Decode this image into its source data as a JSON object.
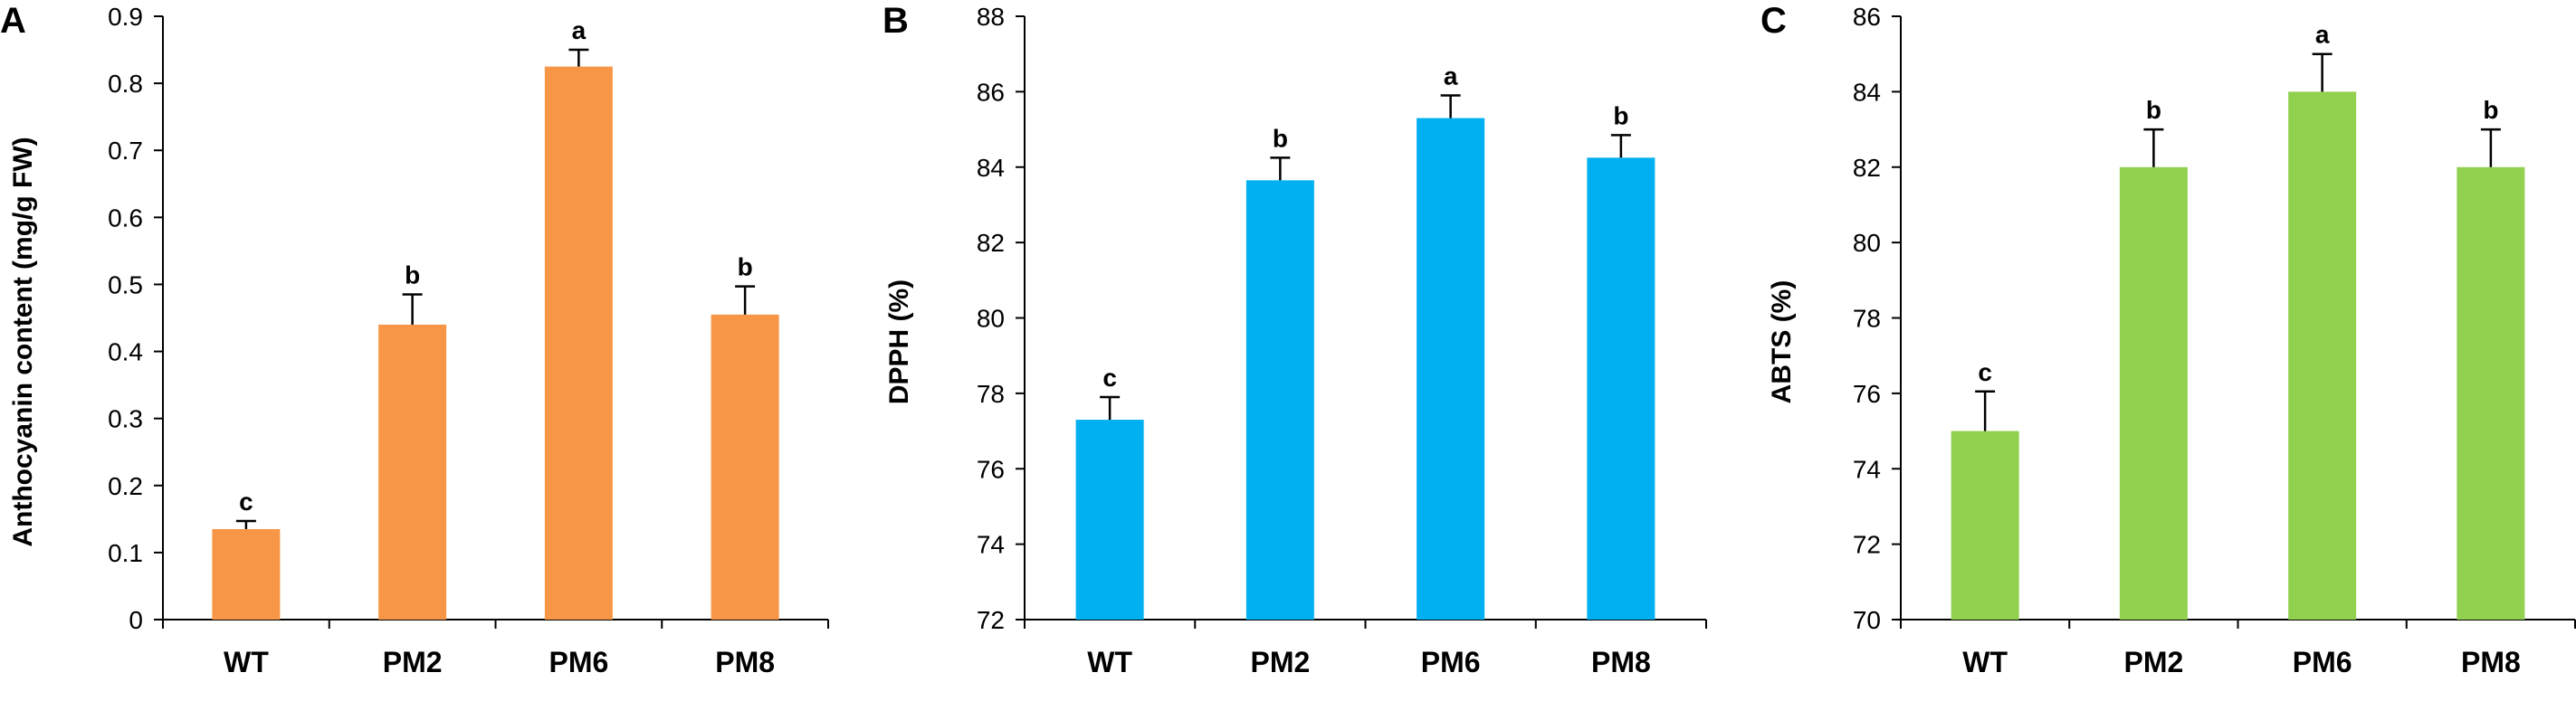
{
  "chart_data": [
    {
      "panel": "A",
      "type": "bar",
      "categories": [
        "WT",
        "PM2",
        "PM6",
        "PM8"
      ],
      "values": [
        0.135,
        0.44,
        0.825,
        0.455
      ],
      "errors": [
        0.012,
        0.045,
        0.025,
        0.042
      ],
      "significance": [
        "c",
        "b",
        "a",
        "b"
      ],
      "ylabel": "Anthocyanin content (mg/g FW)",
      "ylim": [
        0,
        0.9
      ],
      "yticks": [
        0,
        0.1,
        0.2,
        0.3,
        0.4,
        0.5,
        0.6,
        0.7,
        0.8,
        0.9
      ],
      "ytick_labels": [
        "0",
        "0.1",
        "0.2",
        "0.3",
        "0.4",
        "0.5",
        "0.6",
        "0.7",
        "0.8",
        "0.9"
      ],
      "color": "#F79646",
      "grid": false
    },
    {
      "panel": "B",
      "type": "bar",
      "categories": [
        "WT",
        "PM2",
        "PM6",
        "PM8"
      ],
      "values": [
        77.3,
        83.65,
        85.3,
        84.25
      ],
      "errors": [
        0.6,
        0.6,
        0.6,
        0.6
      ],
      "significance": [
        "c",
        "b",
        "a",
        "b"
      ],
      "ylabel": "DPPH (%)",
      "ylim": [
        72,
        88
      ],
      "yticks": [
        72,
        74,
        76,
        78,
        80,
        82,
        84,
        86,
        88
      ],
      "ytick_labels": [
        "72",
        "74",
        "76",
        "78",
        "80",
        "82",
        "84",
        "86",
        "88"
      ],
      "color": "#00B0F0",
      "grid": false
    },
    {
      "panel": "C",
      "type": "bar",
      "categories": [
        "WT",
        "PM2",
        "PM6",
        "PM8"
      ],
      "values": [
        75,
        82,
        84,
        82
      ],
      "errors": [
        1.05,
        1.0,
        1.0,
        1.0
      ],
      "significance": [
        "c",
        "b",
        "a",
        "b"
      ],
      "ylabel": "ABTS (%)",
      "ylim": [
        70,
        86
      ],
      "yticks": [
        70,
        72,
        74,
        76,
        78,
        80,
        82,
        84,
        86
      ],
      "ytick_labels": [
        "70",
        "72",
        "74",
        "76",
        "78",
        "80",
        "82",
        "84",
        "86"
      ],
      "color": "#92D050",
      "grid": false
    }
  ]
}
